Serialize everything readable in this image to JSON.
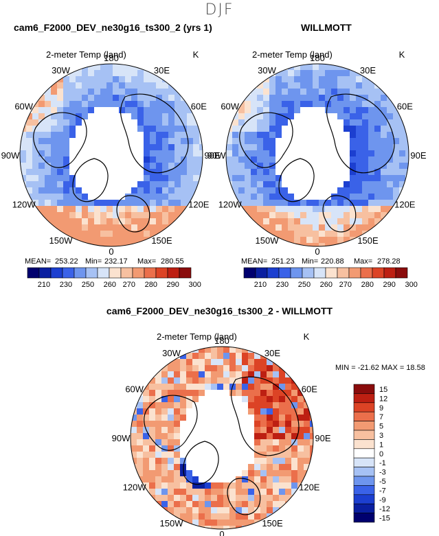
{
  "page_title": "DJF",
  "colors": {
    "blue_1": "#00006e",
    "blue_2": "#0a1fa0",
    "blue_3": "#1c3fd0",
    "blue_4": "#3a62e8",
    "blue_5": "#6e95ee",
    "blue_6": "#a6c1f4",
    "blue_7": "#d7e4f8",
    "red_1": "#fbe2cf",
    "red_2": "#f7c0a0",
    "red_3": "#f29a72",
    "red_4": "#eb6f4b",
    "red_5": "#dc4325",
    "red_6": "#bd1f12",
    "red_7": "#8a0c0c",
    "land_outline": "#000000",
    "background": "#ffffff"
  },
  "chart_data": [
    {
      "type": "heatmap",
      "panel": "top-left",
      "title": "cam6_F2000_DEV_ne30g16_ts300_2 (yrs 1)",
      "subtitle": "2-meter Temp (land)",
      "units": "K",
      "projection": "north polar stereographic",
      "lon_labels": [
        "180",
        "150E",
        "120E",
        "90E",
        "60E",
        "30E",
        "0",
        "30W",
        "60W",
        "90W",
        "120W",
        "150W"
      ],
      "stats": {
        "mean_label": "MEAN=",
        "mean": "253.22",
        "min_label": "Min=",
        "min": "232.17",
        "max_label": "Max=",
        "max": "280.55"
      },
      "colorbar_ticks": [
        "210",
        "230",
        "250",
        "260",
        "270",
        "280",
        "290",
        "300"
      ]
    },
    {
      "type": "heatmap",
      "panel": "top-right",
      "title": "WILLMOTT",
      "subtitle": "2-meter Temp (land)",
      "units": "K",
      "projection": "north polar stereographic",
      "lon_labels": [
        "180",
        "150E",
        "120E",
        "90E",
        "60E",
        "30E",
        "0",
        "30W",
        "60W",
        "90W",
        "120W",
        "150W"
      ],
      "stats": {
        "mean_label": "MEAN=",
        "mean": "251.23",
        "min_label": "Min=",
        "min": "220.88",
        "max_label": "Max=",
        "max": "278.28"
      },
      "colorbar_ticks": [
        "210",
        "230",
        "250",
        "260",
        "270",
        "280",
        "290",
        "300"
      ]
    },
    {
      "type": "heatmap",
      "panel": "bottom",
      "title": "cam6_F2000_DEV_ne30g16_ts300_2 - WILLMOTT",
      "subtitle": "2-meter Temp (land)",
      "units": "K",
      "projection": "north polar stereographic",
      "lon_labels": [
        "180",
        "150E",
        "120E",
        "90E",
        "60E",
        "30E",
        "0",
        "30W",
        "60W",
        "90W",
        "120W",
        "150W"
      ],
      "stats_line": "MIN = -21.62 MAX =  18.58",
      "colorbar_ticks": [
        "15",
        "12",
        "9",
        "7",
        "5",
        "3",
        "1",
        "0",
        "-1",
        "-3",
        "-5",
        "-7",
        "-9",
        "-12",
        "-15"
      ]
    }
  ]
}
